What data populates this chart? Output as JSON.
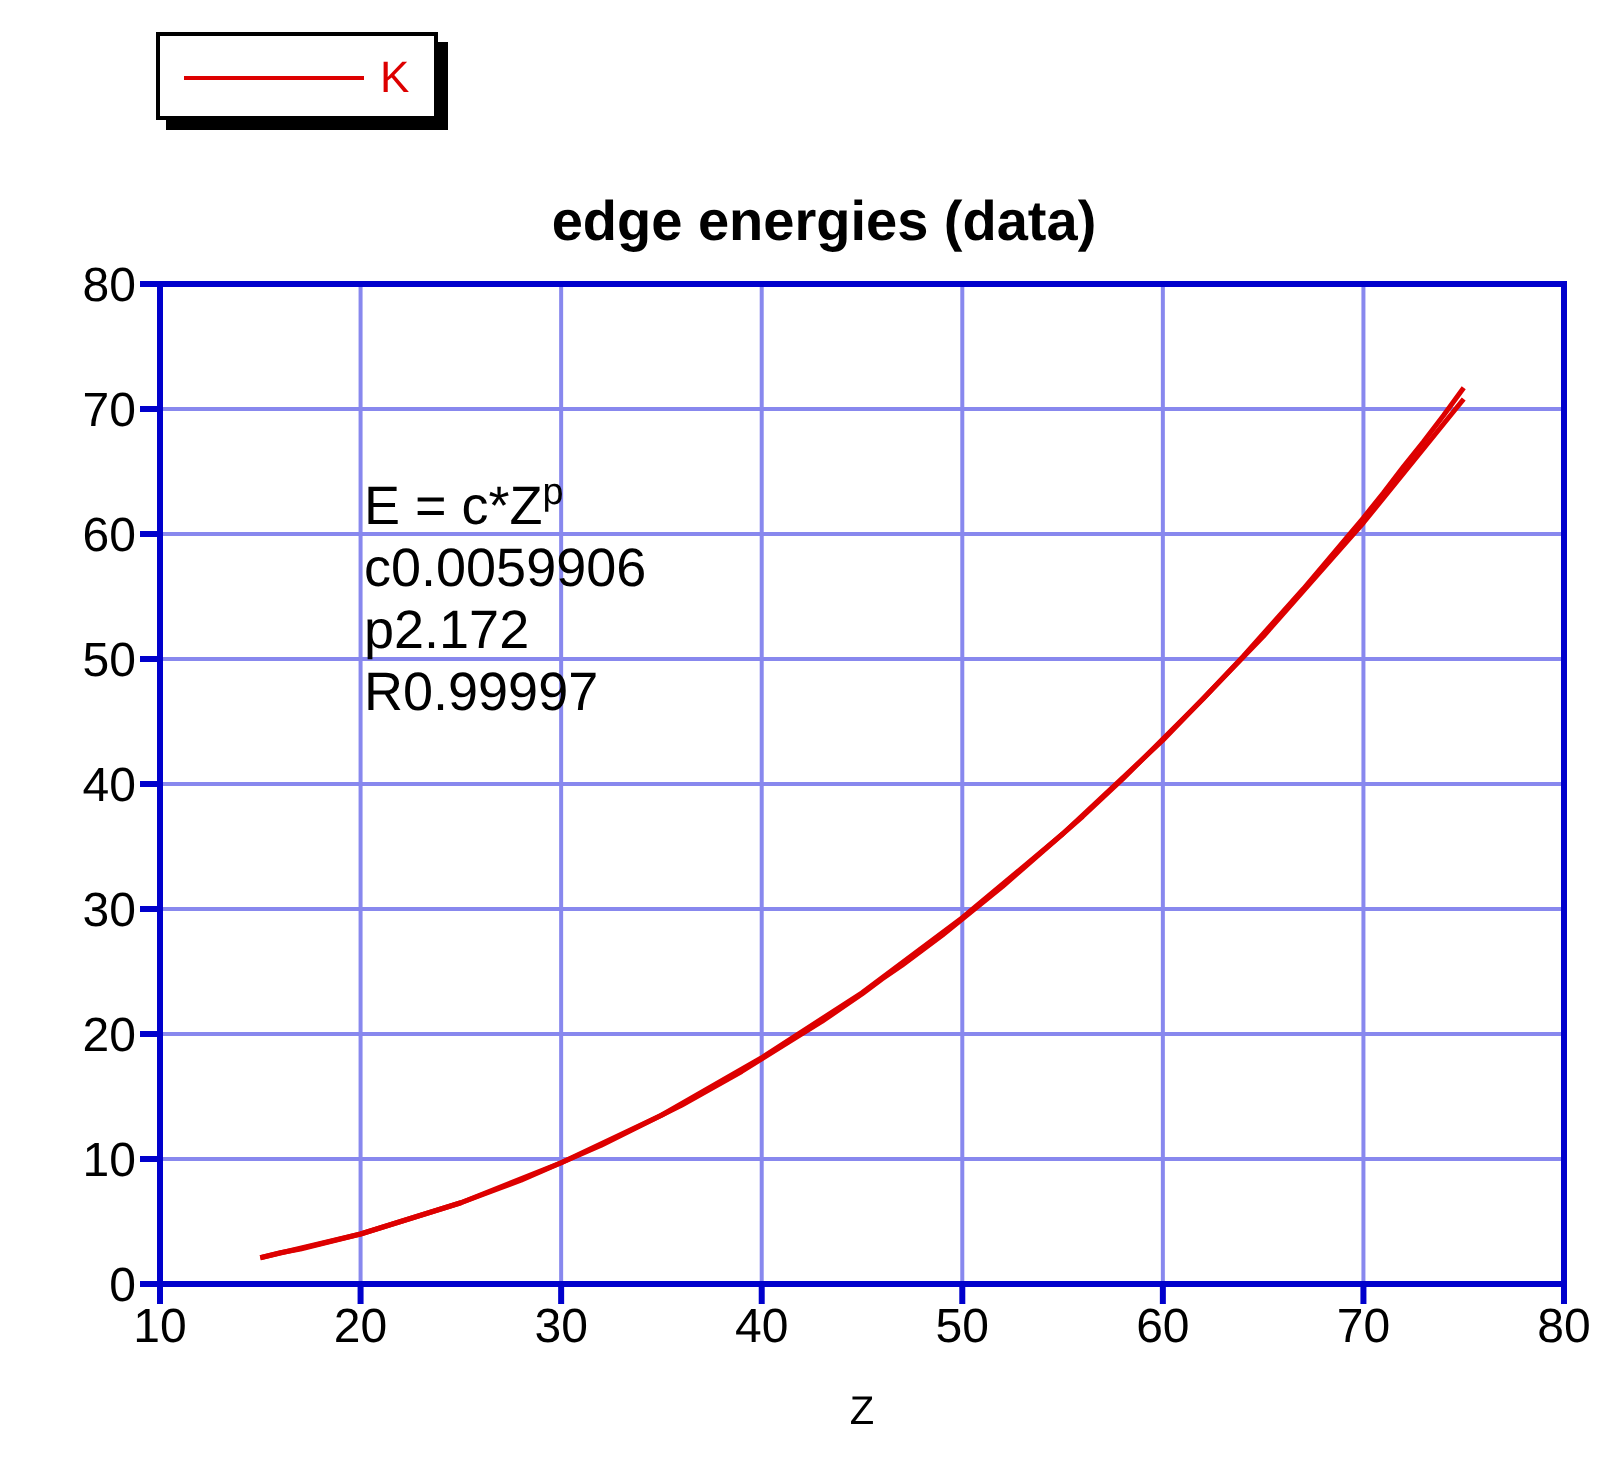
{
  "chart_data": {
    "type": "line",
    "title": "edge energies (data)",
    "xlabel": "Z",
    "series": [
      {
        "name": "K",
        "color": "#dd0000",
        "x": [
          15,
          16,
          17,
          18,
          19,
          20,
          21,
          22,
          23,
          24,
          25,
          26,
          27,
          28,
          29,
          30,
          31,
          32,
          33,
          34,
          35,
          36,
          37,
          38,
          39,
          40,
          41,
          42,
          43,
          44,
          45,
          46,
          47,
          48,
          49,
          50,
          51,
          52,
          53,
          54,
          55,
          56,
          57,
          58,
          59,
          60,
          61,
          62,
          63,
          64,
          65,
          66,
          67,
          68,
          69,
          70,
          71,
          72,
          73,
          74,
          75
        ],
        "values": [
          2.1,
          2.5,
          2.8,
          3.2,
          3.6,
          4.0,
          4.5,
          5.0,
          5.5,
          6.0,
          6.5,
          7.1,
          7.7,
          8.3,
          9.0,
          9.7,
          10.4,
          11.1,
          11.9,
          12.7,
          13.5,
          14.3,
          15.2,
          16.1,
          17.0,
          18.0,
          19.0,
          20.0,
          21.0,
          22.1,
          23.2,
          24.4,
          25.5,
          26.7,
          27.9,
          29.2,
          30.5,
          31.8,
          33.2,
          34.6,
          36.0,
          37.4,
          38.9,
          40.4,
          42.0,
          43.6,
          45.2,
          46.8,
          48.5,
          50.2,
          52.0,
          53.8,
          55.6,
          57.5,
          59.4,
          61.3,
          63.3,
          65.4,
          67.4,
          69.5,
          71.7
        ]
      },
      {
        "color": "#dd0000",
        "x": [
          15,
          20,
          25,
          30,
          35,
          40,
          45,
          50,
          55,
          60,
          65,
          70,
          75
        ],
        "values": [
          2.1,
          4.0,
          6.5,
          9.7,
          13.5,
          18.1,
          23.3,
          29.3,
          36.0,
          43.5,
          51.8,
          60.9,
          70.8
        ]
      }
    ],
    "xlim": [
      10,
      80
    ],
    "xticks": [
      10,
      20,
      30,
      40,
      50,
      60,
      70,
      80
    ],
    "ylim": [
      0,
      80
    ],
    "yticks": [
      0,
      10,
      20,
      30,
      40,
      50,
      60,
      70,
      80
    ],
    "grid": true,
    "legend": "top left",
    "marker": "none",
    "line_style": "solid",
    "annotations": [
      "E = c*Z$^{p}$",
      "c0.0059906",
      "p2.172",
      "R0.99997"
    ]
  }
}
